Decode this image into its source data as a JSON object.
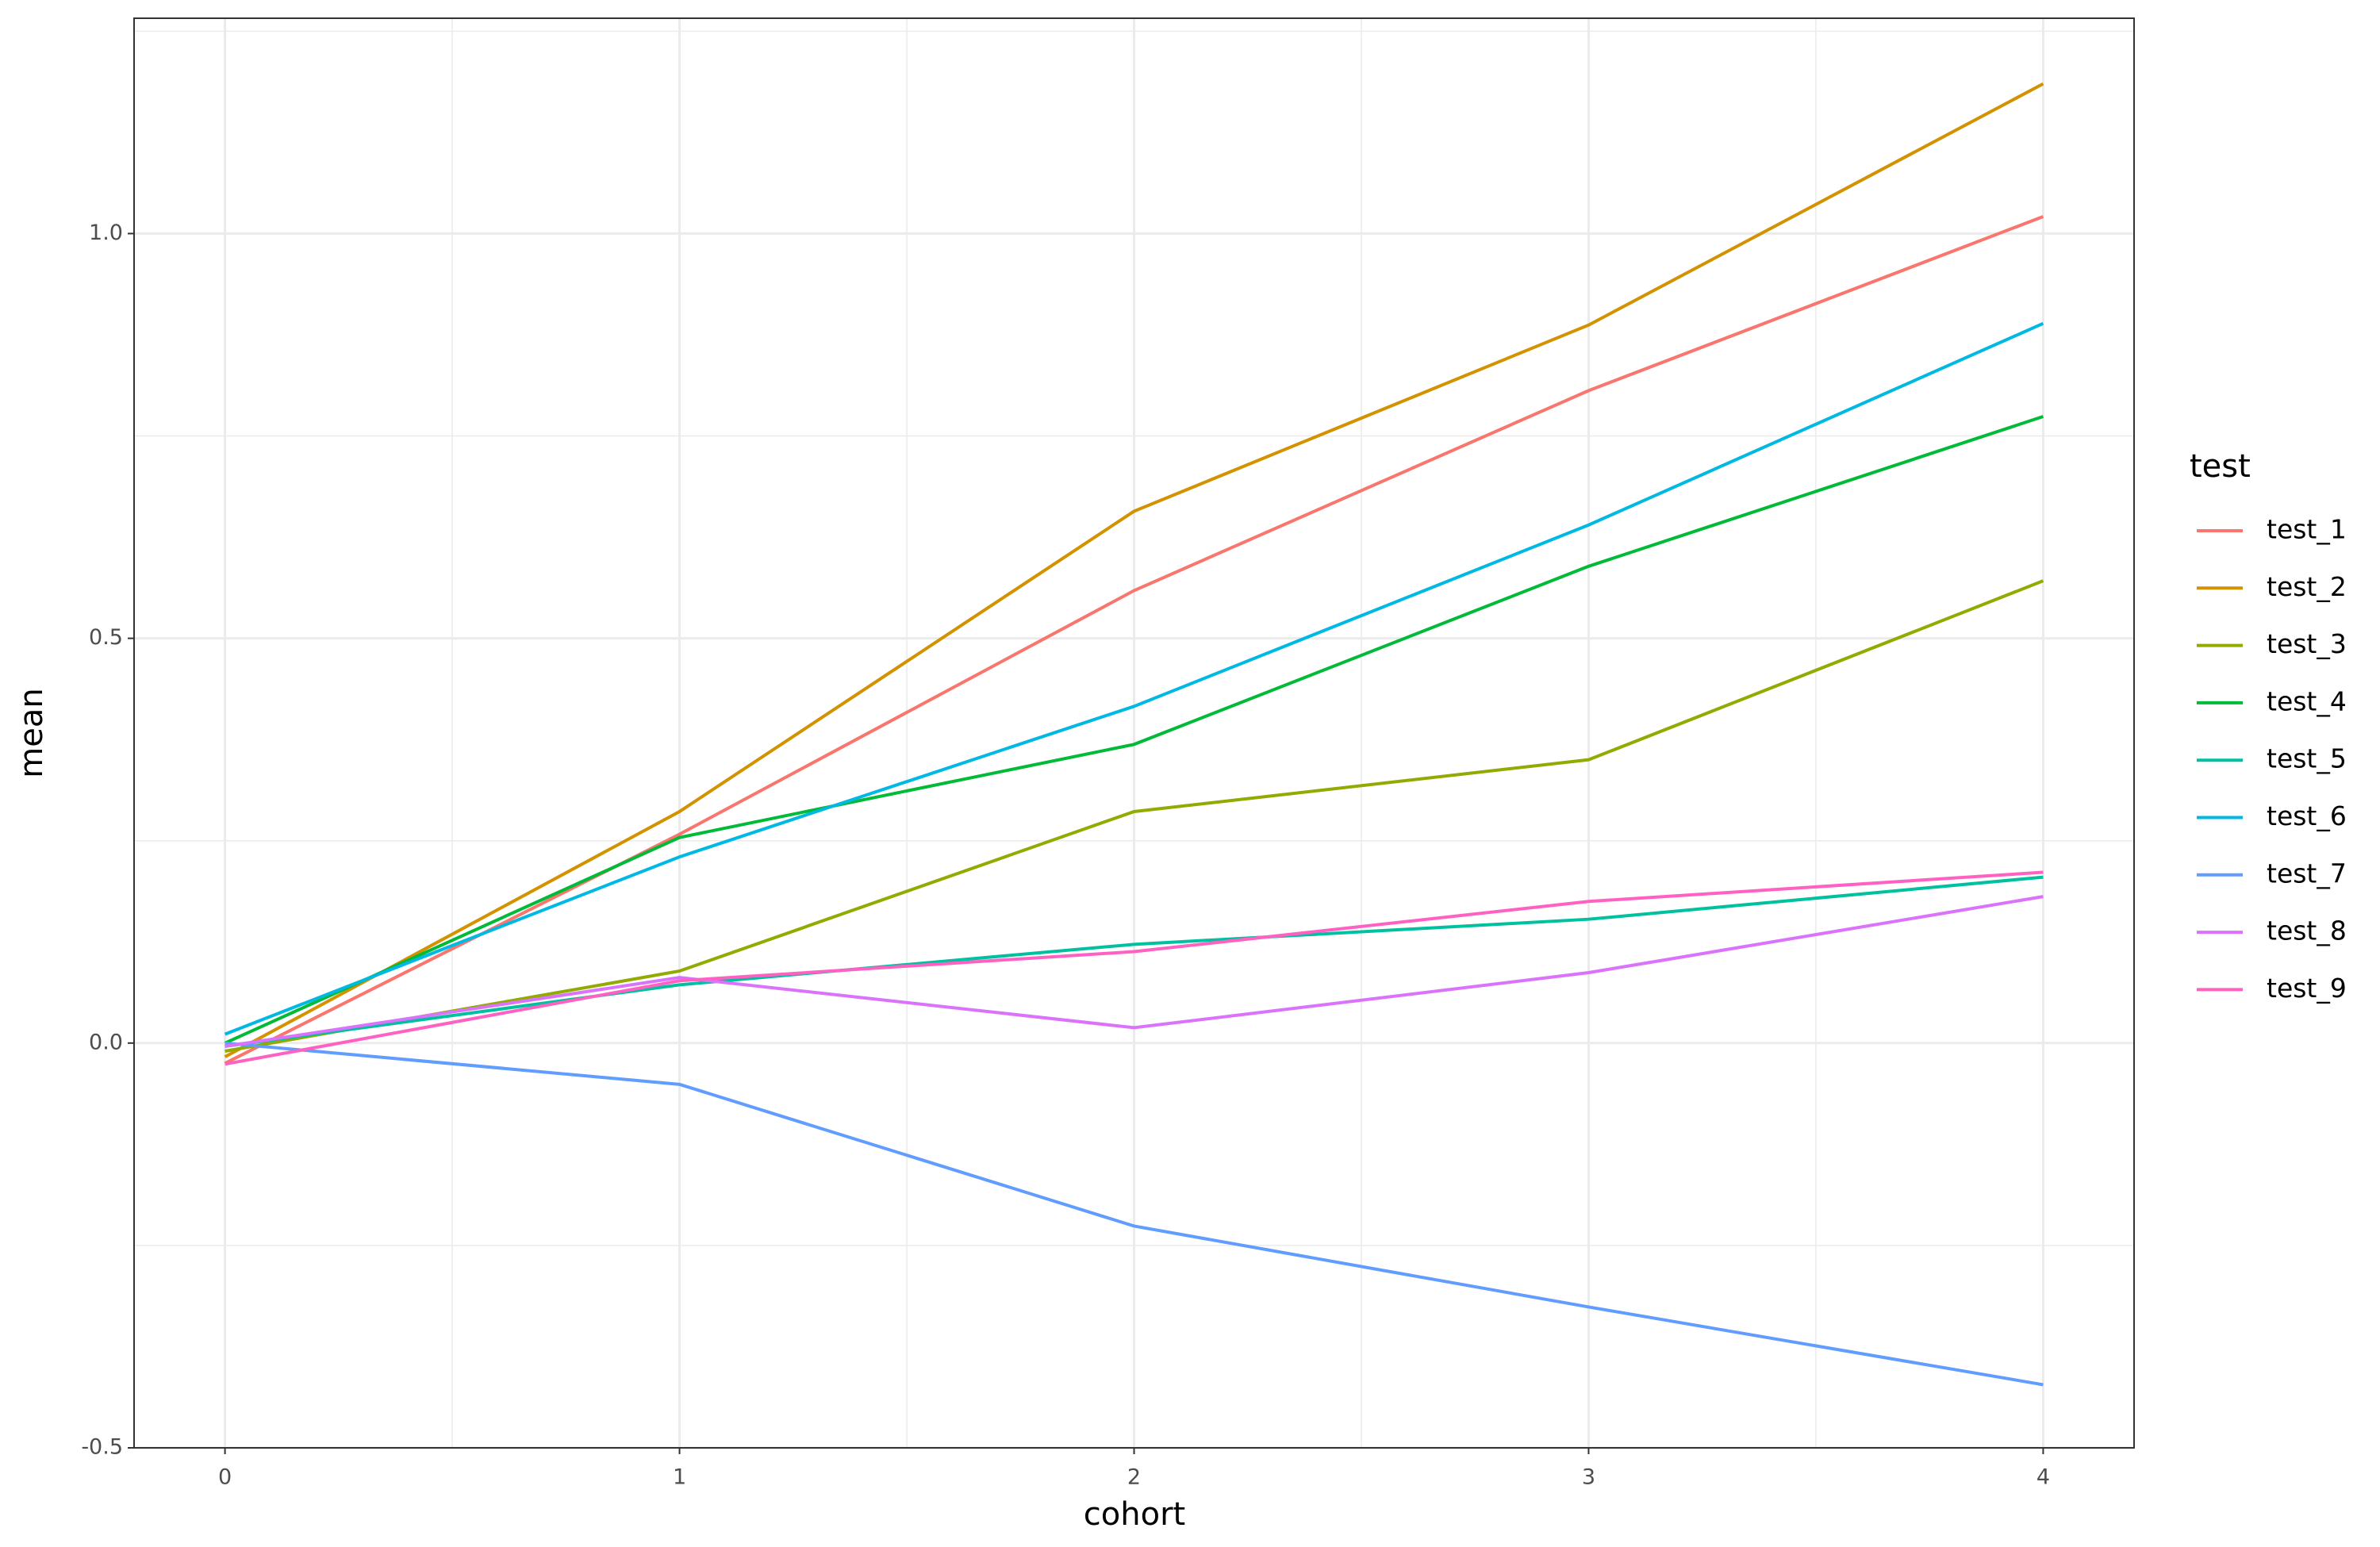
{
  "chart_data": {
    "type": "line",
    "x_label": "cohort",
    "y_label": "mean",
    "legend_title": "test",
    "x": [
      0,
      1,
      2,
      3,
      4
    ],
    "xlim": [
      -0.2,
      4.2
    ],
    "xticks": [
      0,
      1,
      2,
      3,
      4
    ],
    "ylim": [
      -0.5,
      1.266
    ],
    "yticks": [
      {
        "value": -0.5,
        "label": "-0.5"
      },
      {
        "value": 0,
        "label": "0.0"
      },
      {
        "value": 0.5,
        "label": "0.5"
      },
      {
        "value": 1,
        "label": "1.0"
      }
    ],
    "grid": true,
    "legend_position": "right",
    "series": [
      {
        "name": "test_1",
        "color": "#F8766D",
        "values": [
          -0.025,
          0.258,
          0.559,
          0.806,
          1.021
        ]
      },
      {
        "name": "test_2",
        "color": "#D39200",
        "values": [
          -0.017,
          0.286,
          0.657,
          0.887,
          1.185
        ]
      },
      {
        "name": "test_3",
        "color": "#93AA00",
        "values": [
          -0.01,
          0.089,
          0.286,
          0.35,
          0.571
        ]
      },
      {
        "name": "test_4",
        "color": "#00BA38",
        "values": [
          0.0,
          0.254,
          0.369,
          0.589,
          0.774
        ]
      },
      {
        "name": "test_5",
        "color": "#00C19F",
        "values": [
          -0.004,
          0.072,
          0.122,
          0.153,
          0.205
        ]
      },
      {
        "name": "test_6",
        "color": "#00B9E3",
        "values": [
          0.011,
          0.23,
          0.416,
          0.64,
          0.889
        ]
      },
      {
        "name": "test_7",
        "color": "#619CFF",
        "values": [
          0.0,
          -0.051,
          -0.226,
          -0.326,
          -0.422
        ]
      },
      {
        "name": "test_8",
        "color": "#DB72FB",
        "values": [
          -0.004,
          0.081,
          0.019,
          0.087,
          0.181
        ]
      },
      {
        "name": "test_9",
        "color": "#FF61C3",
        "values": [
          -0.026,
          0.077,
          0.113,
          0.175,
          0.211
        ]
      }
    ]
  }
}
